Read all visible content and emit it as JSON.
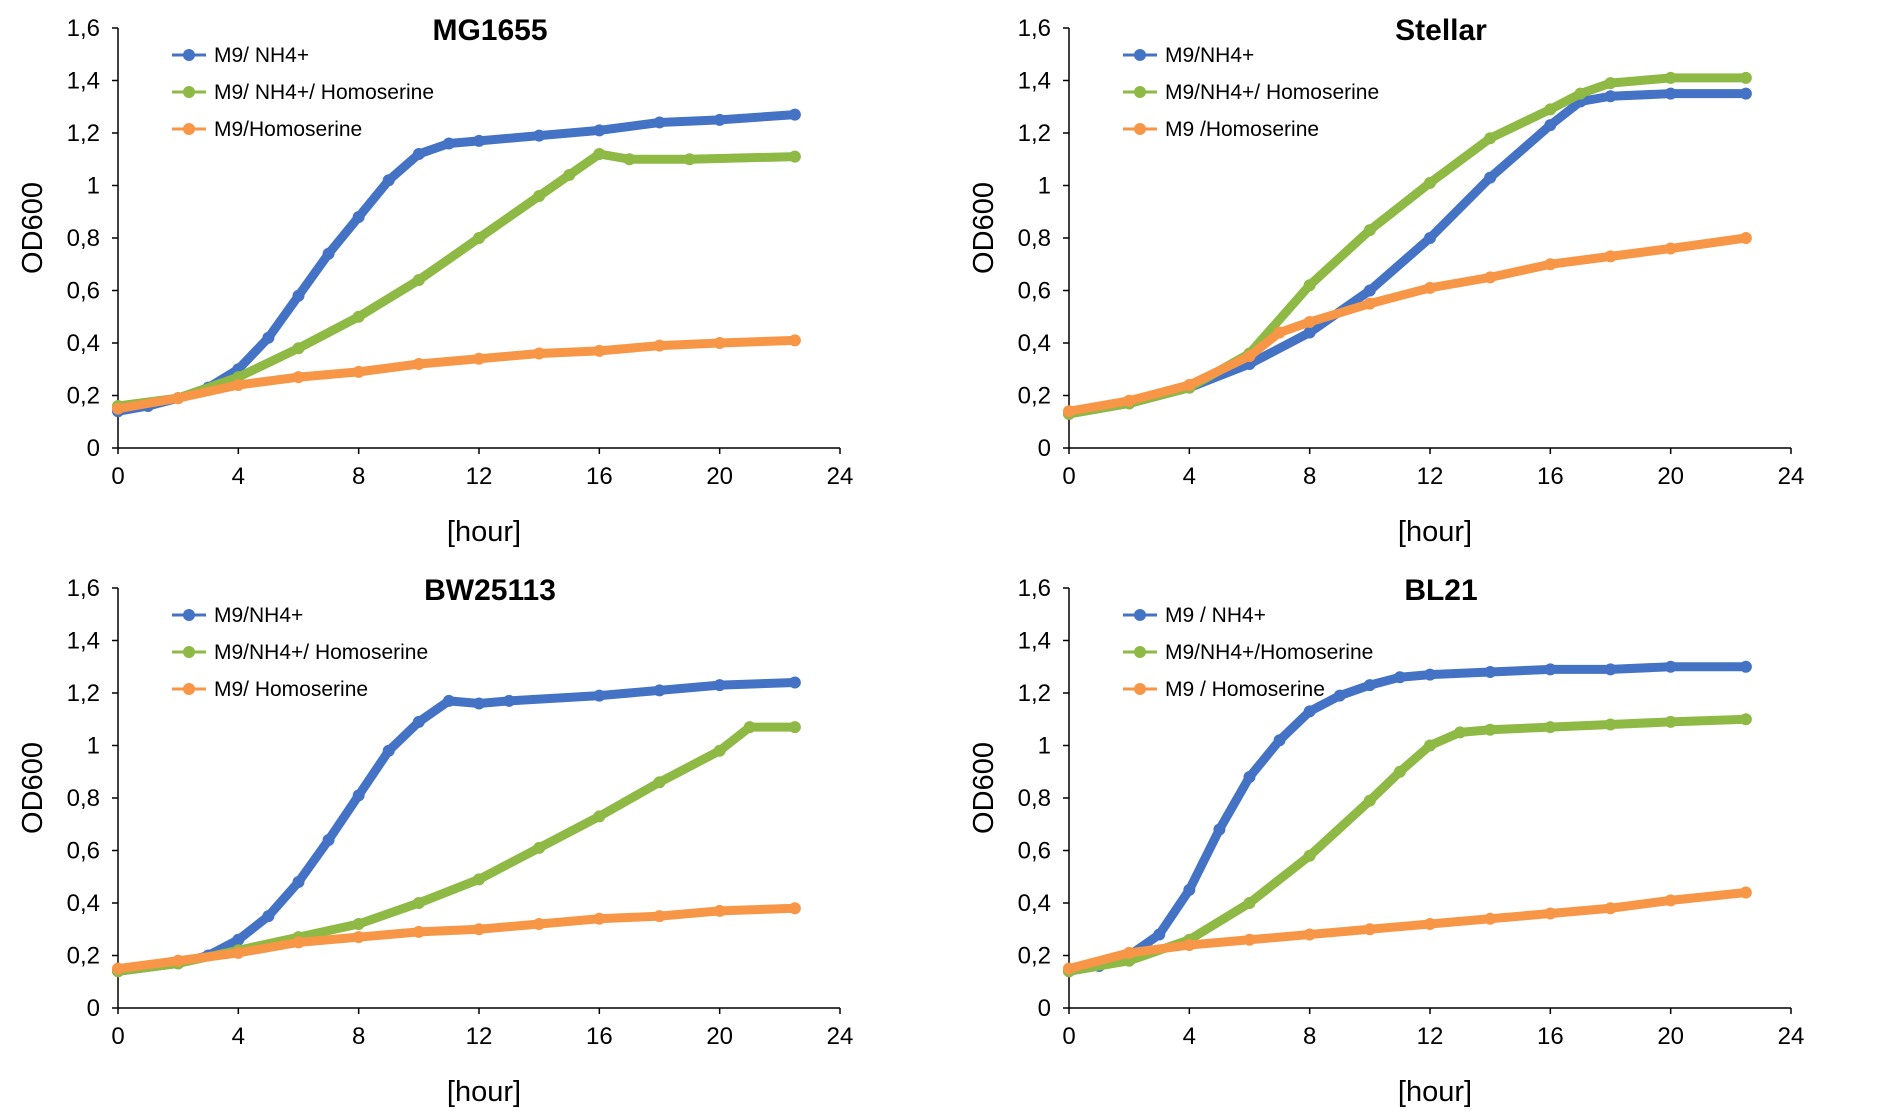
{
  "figure": {
    "background": "#ffffff"
  },
  "chart_data": [
    {
      "type": "line",
      "title": "MG1655",
      "xlabel": "[hour]",
      "ylabel": "OD600",
      "xlim": [
        0,
        24
      ],
      "ylim": [
        0,
        1.6
      ],
      "x_ticks": [
        "0",
        "4",
        "8",
        "12",
        "16",
        "20",
        "24"
      ],
      "y_ticks": [
        "0",
        "0,2",
        "0,4",
        "0,6",
        "0,8",
        "1",
        "1,2",
        "1,4",
        "1,6"
      ],
      "legend_position": "top-left",
      "series": [
        {
          "name": "M9/ NH4+",
          "color": "#4472C4",
          "points": [
            [
              0,
              0.14
            ],
            [
              1,
              0.16
            ],
            [
              2,
              0.19
            ],
            [
              3,
              0.23
            ],
            [
              4,
              0.3
            ],
            [
              5,
              0.42
            ],
            [
              6,
              0.58
            ],
            [
              7,
              0.74
            ],
            [
              8,
              0.88
            ],
            [
              9,
              1.02
            ],
            [
              10,
              1.12
            ],
            [
              11,
              1.16
            ],
            [
              12,
              1.17
            ],
            [
              14,
              1.19
            ],
            [
              16,
              1.21
            ],
            [
              18,
              1.24
            ],
            [
              20,
              1.25
            ],
            [
              22.5,
              1.27
            ]
          ]
        },
        {
          "name": "M9/ NH4+/ Homoserine",
          "color": "#8DB944",
          "points": [
            [
              0,
              0.16
            ],
            [
              2,
              0.19
            ],
            [
              4,
              0.27
            ],
            [
              6,
              0.38
            ],
            [
              8,
              0.5
            ],
            [
              10,
              0.64
            ],
            [
              12,
              0.8
            ],
            [
              14,
              0.96
            ],
            [
              15,
              1.04
            ],
            [
              16,
              1.12
            ],
            [
              17,
              1.1
            ],
            [
              19,
              1.1
            ],
            [
              22.5,
              1.11
            ]
          ]
        },
        {
          "name": "M9/Homoserine",
          "color": "#F79646",
          "points": [
            [
              0,
              0.15
            ],
            [
              2,
              0.19
            ],
            [
              4,
              0.24
            ],
            [
              6,
              0.27
            ],
            [
              8,
              0.29
            ],
            [
              10,
              0.32
            ],
            [
              12,
              0.34
            ],
            [
              14,
              0.36
            ],
            [
              16,
              0.37
            ],
            [
              18,
              0.39
            ],
            [
              20,
              0.4
            ],
            [
              22.5,
              0.41
            ]
          ]
        }
      ]
    },
    {
      "type": "line",
      "title": "Stellar",
      "xlabel": "[hour]",
      "ylabel": "OD600",
      "xlim": [
        0,
        24
      ],
      "ylim": [
        0,
        1.6
      ],
      "x_ticks": [
        "0",
        "4",
        "8",
        "12",
        "16",
        "20",
        "24"
      ],
      "y_ticks": [
        "0",
        "0,2",
        "0,4",
        "0,6",
        "0,8",
        "1",
        "1,2",
        "1,4",
        "1,6"
      ],
      "legend_position": "top-left",
      "series": [
        {
          "name": "M9/NH4+",
          "color": "#4472C4",
          "points": [
            [
              0,
              0.13
            ],
            [
              2,
              0.17
            ],
            [
              4,
              0.23
            ],
            [
              6,
              0.32
            ],
            [
              8,
              0.44
            ],
            [
              10,
              0.6
            ],
            [
              12,
              0.8
            ],
            [
              14,
              1.03
            ],
            [
              16,
              1.23
            ],
            [
              17,
              1.32
            ],
            [
              18,
              1.34
            ],
            [
              20,
              1.35
            ],
            [
              22.5,
              1.35
            ]
          ]
        },
        {
          "name": "M9/NH4+/ Homoserine",
          "color": "#8DB944",
          "points": [
            [
              0,
              0.13
            ],
            [
              2,
              0.17
            ],
            [
              4,
              0.23
            ],
            [
              6,
              0.36
            ],
            [
              8,
              0.62
            ],
            [
              10,
              0.83
            ],
            [
              12,
              1.01
            ],
            [
              14,
              1.18
            ],
            [
              16,
              1.29
            ],
            [
              17,
              1.35
            ],
            [
              18,
              1.39
            ],
            [
              20,
              1.41
            ],
            [
              22.5,
              1.41
            ]
          ]
        },
        {
          "name": "M9 /Homoserine",
          "color": "#F79646",
          "points": [
            [
              0,
              0.14
            ],
            [
              2,
              0.18
            ],
            [
              4,
              0.24
            ],
            [
              6,
              0.35
            ],
            [
              7,
              0.44
            ],
            [
              8,
              0.48
            ],
            [
              10,
              0.55
            ],
            [
              12,
              0.61
            ],
            [
              14,
              0.65
            ],
            [
              16,
              0.7
            ],
            [
              18,
              0.73
            ],
            [
              20,
              0.76
            ],
            [
              22.5,
              0.8
            ]
          ]
        }
      ]
    },
    {
      "type": "line",
      "title": "BW25113",
      "xlabel": "[hour]",
      "ylabel": "OD600",
      "xlim": [
        0,
        24
      ],
      "ylim": [
        0,
        1.6
      ],
      "x_ticks": [
        "0",
        "4",
        "8",
        "12",
        "16",
        "20",
        "24"
      ],
      "y_ticks": [
        "0",
        "0,2",
        "0,4",
        "0,6",
        "0,8",
        "1",
        "1,2",
        "1,4",
        "1,6"
      ],
      "legend_position": "top-left",
      "series": [
        {
          "name": "M9/NH4+",
          "color": "#4472C4",
          "points": [
            [
              0,
              0.14
            ],
            [
              2,
              0.17
            ],
            [
              3,
              0.2
            ],
            [
              4,
              0.26
            ],
            [
              5,
              0.35
            ],
            [
              6,
              0.48
            ],
            [
              7,
              0.64
            ],
            [
              8,
              0.81
            ],
            [
              9,
              0.98
            ],
            [
              10,
              1.09
            ],
            [
              11,
              1.17
            ],
            [
              12,
              1.16
            ],
            [
              13,
              1.17
            ],
            [
              16,
              1.19
            ],
            [
              18,
              1.21
            ],
            [
              20,
              1.23
            ],
            [
              22.5,
              1.24
            ]
          ]
        },
        {
          "name": "M9/NH4+/ Homoserine",
          "color": "#8DB944",
          "points": [
            [
              0,
              0.14
            ],
            [
              2,
              0.17
            ],
            [
              4,
              0.22
            ],
            [
              6,
              0.27
            ],
            [
              8,
              0.32
            ],
            [
              10,
              0.4
            ],
            [
              12,
              0.49
            ],
            [
              14,
              0.61
            ],
            [
              16,
              0.73
            ],
            [
              18,
              0.86
            ],
            [
              20,
              0.98
            ],
            [
              21,
              1.07
            ],
            [
              22.5,
              1.07
            ]
          ]
        },
        {
          "name": "M9/ Homoserine",
          "color": "#F79646",
          "points": [
            [
              0,
              0.15
            ],
            [
              2,
              0.18
            ],
            [
              4,
              0.21
            ],
            [
              6,
              0.25
            ],
            [
              8,
              0.27
            ],
            [
              10,
              0.29
            ],
            [
              12,
              0.3
            ],
            [
              14,
              0.32
            ],
            [
              16,
              0.34
            ],
            [
              18,
              0.35
            ],
            [
              20,
              0.37
            ],
            [
              22.5,
              0.38
            ]
          ]
        }
      ]
    },
    {
      "type": "line",
      "title": "BL21",
      "xlabel": "[hour]",
      "ylabel": "OD600",
      "xlim": [
        0,
        24
      ],
      "ylim": [
        0,
        1.6
      ],
      "x_ticks": [
        "0",
        "4",
        "8",
        "12",
        "16",
        "20",
        "24"
      ],
      "y_ticks": [
        "0",
        "0,2",
        "0,4",
        "0,6",
        "0,8",
        "1",
        "1,2",
        "1,4",
        "1,6"
      ],
      "legend_position": "top-left",
      "series": [
        {
          "name": "M9 / NH4+",
          "color": "#4472C4",
          "points": [
            [
              0,
              0.14
            ],
            [
              1,
              0.16
            ],
            [
              2,
              0.2
            ],
            [
              3,
              0.28
            ],
            [
              4,
              0.45
            ],
            [
              5,
              0.68
            ],
            [
              6,
              0.88
            ],
            [
              7,
              1.02
            ],
            [
              8,
              1.13
            ],
            [
              9,
              1.19
            ],
            [
              10,
              1.23
            ],
            [
              11,
              1.26
            ],
            [
              12,
              1.27
            ],
            [
              14,
              1.28
            ],
            [
              16,
              1.29
            ],
            [
              18,
              1.29
            ],
            [
              20,
              1.3
            ],
            [
              22.5,
              1.3
            ]
          ]
        },
        {
          "name": "M9/NH4+/Homoserine",
          "color": "#8DB944",
          "points": [
            [
              0,
              0.14
            ],
            [
              2,
              0.18
            ],
            [
              4,
              0.26
            ],
            [
              6,
              0.4
            ],
            [
              8,
              0.58
            ],
            [
              10,
              0.79
            ],
            [
              11,
              0.9
            ],
            [
              12,
              1.0
            ],
            [
              13,
              1.05
            ],
            [
              14,
              1.06
            ],
            [
              16,
              1.07
            ],
            [
              18,
              1.08
            ],
            [
              20,
              1.09
            ],
            [
              22.5,
              1.1
            ]
          ]
        },
        {
          "name": "M9 / Homoserine",
          "color": "#F79646",
          "points": [
            [
              0,
              0.15
            ],
            [
              2,
              0.21
            ],
            [
              4,
              0.24
            ],
            [
              6,
              0.26
            ],
            [
              8,
              0.28
            ],
            [
              10,
              0.3
            ],
            [
              12,
              0.32
            ],
            [
              14,
              0.34
            ],
            [
              16,
              0.36
            ],
            [
              18,
              0.38
            ],
            [
              20,
              0.41
            ],
            [
              22.5,
              0.44
            ]
          ]
        }
      ]
    }
  ]
}
